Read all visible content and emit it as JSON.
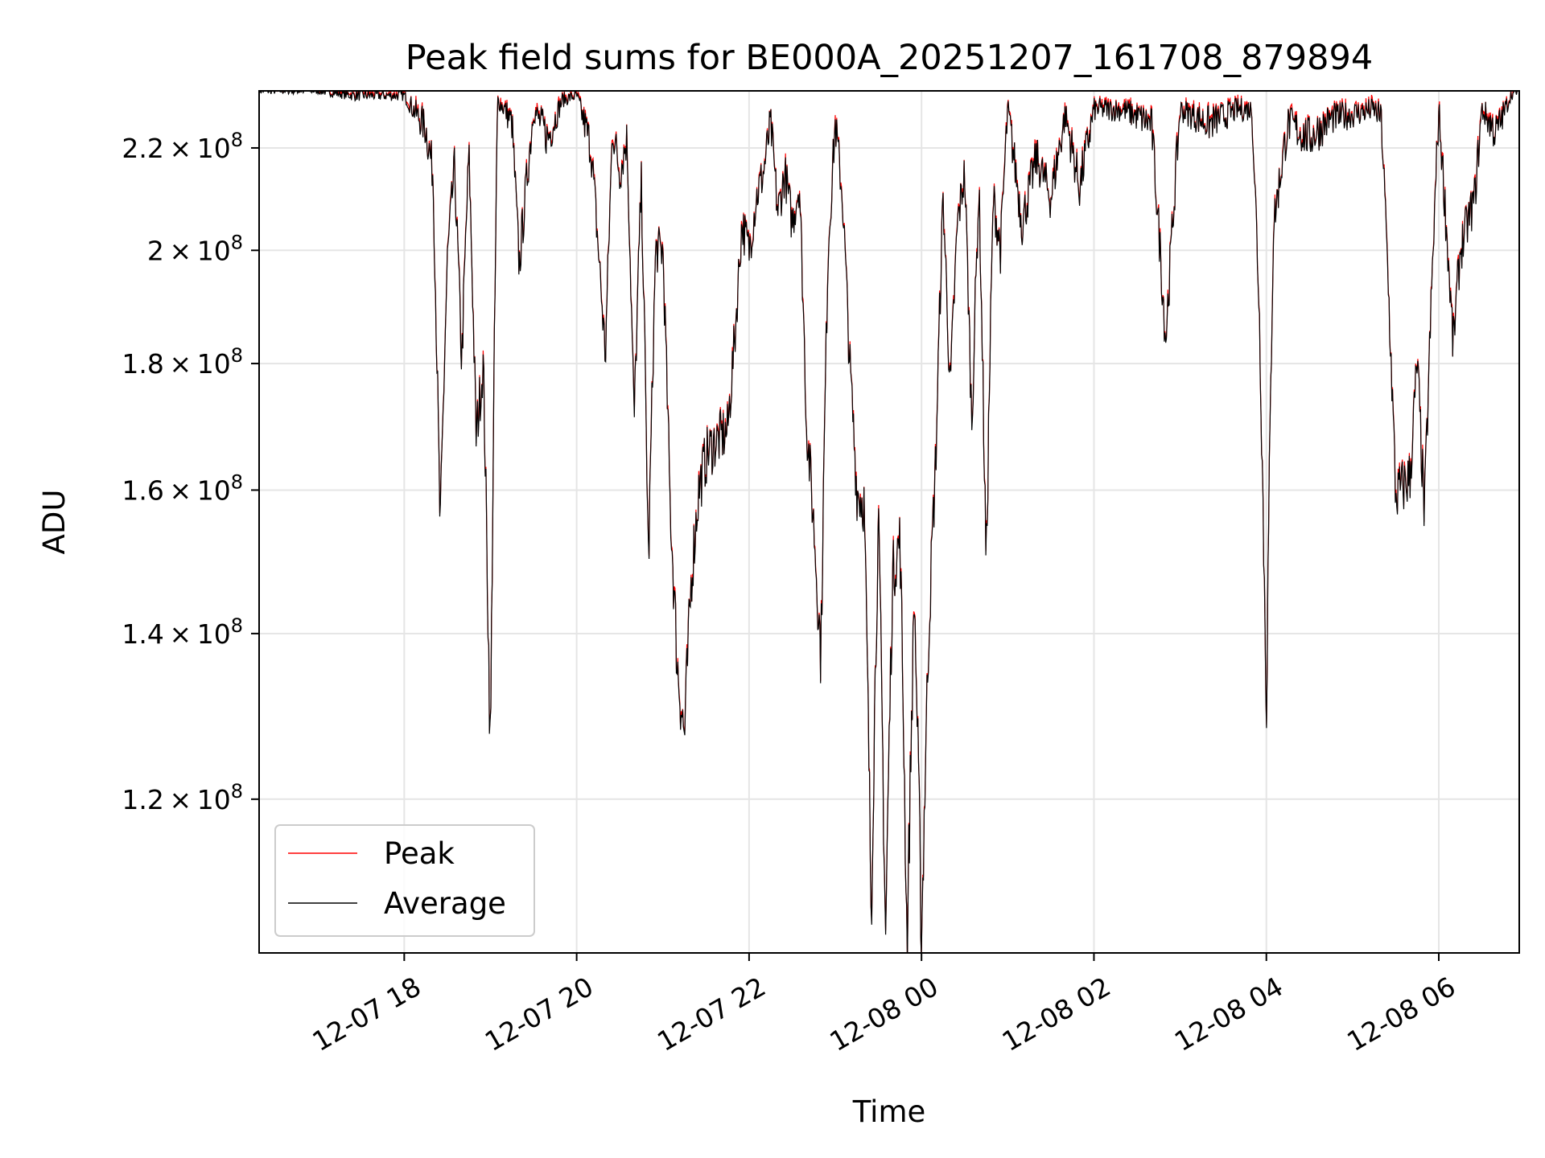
{
  "chart_data": {
    "type": "line",
    "title": "Peak field sums for BE000A_20251207_161708_879894",
    "xlabel": "Time",
    "ylabel": "ADU",
    "y_scale": "log",
    "x_range": [
      "2025-12-07 16:19",
      "2025-12-08 06:56"
    ],
    "ylim": [
      104000000,
      232000000
    ],
    "grid": true,
    "legend_position": "lower left",
    "x_ticks": [
      {
        "value": "2025-12-07 18:00",
        "label": "12-07 18"
      },
      {
        "value": "2025-12-07 20:00",
        "label": "12-07 20"
      },
      {
        "value": "2025-12-07 22:00",
        "label": "12-07 22"
      },
      {
        "value": "2025-12-08 00:00",
        "label": "12-08 00"
      },
      {
        "value": "2025-12-08 02:00",
        "label": "12-08 02"
      },
      {
        "value": "2025-12-08 04:00",
        "label": "12-08 04"
      },
      {
        "value": "2025-12-08 06:00",
        "label": "12-08 06"
      }
    ],
    "y_ticks": [
      {
        "value": 120000000,
        "mantissa": "1.2",
        "base": "10",
        "exponent": "8"
      },
      {
        "value": 140000000,
        "mantissa": "1.4",
        "base": "10",
        "exponent": "8"
      },
      {
        "value": 160000000,
        "mantissa": "1.6",
        "base": "10",
        "exponent": "8"
      },
      {
        "value": 180000000,
        "mantissa": "1.8",
        "base": "10",
        "exponent": "8"
      },
      {
        "value": 200000000,
        "mantissa": "2",
        "base": "10",
        "exponent": "8"
      },
      {
        "value": 220000000,
        "mantissa": "2.2",
        "base": "10",
        "exponent": "8"
      }
    ],
    "series": [
      {
        "name": "Peak",
        "color": "#ff0000"
      },
      {
        "name": "Average",
        "color": "#000000"
      }
    ],
    "x": [
      "2025-12-07 16:19",
      "2025-12-07 17:00",
      "2025-12-07 17:25",
      "2025-12-07 18:00",
      "2025-12-07 18:15",
      "2025-12-07 18:20",
      "2025-12-07 18:25",
      "2025-12-07 18:30",
      "2025-12-07 18:35",
      "2025-12-07 18:40",
      "2025-12-07 18:45",
      "2025-12-07 18:50",
      "2025-12-07 18:55",
      "2025-12-07 19:00",
      "2025-12-07 19:05",
      "2025-12-07 19:10",
      "2025-12-07 19:15",
      "2025-12-07 19:20",
      "2025-12-07 19:30",
      "2025-12-07 19:40",
      "2025-12-07 19:50",
      "2025-12-07 20:00",
      "2025-12-07 20:10",
      "2025-12-07 20:20",
      "2025-12-07 20:25",
      "2025-12-07 20:30",
      "2025-12-07 20:35",
      "2025-12-07 20:40",
      "2025-12-07 20:45",
      "2025-12-07 20:50",
      "2025-12-07 20:55",
      "2025-12-07 21:00",
      "2025-12-07 21:05",
      "2025-12-07 21:10",
      "2025-12-07 21:15",
      "2025-12-07 21:20",
      "2025-12-07 21:25",
      "2025-12-07 21:30",
      "2025-12-07 21:35",
      "2025-12-07 21:40",
      "2025-12-07 21:45",
      "2025-12-07 21:50",
      "2025-12-07 21:55",
      "2025-12-07 22:00",
      "2025-12-07 22:05",
      "2025-12-07 22:10",
      "2025-12-07 22:15",
      "2025-12-07 22:20",
      "2025-12-07 22:25",
      "2025-12-07 22:30",
      "2025-12-07 22:35",
      "2025-12-07 22:40",
      "2025-12-07 22:45",
      "2025-12-07 22:50",
      "2025-12-07 22:55",
      "2025-12-07 23:00",
      "2025-12-07 23:05",
      "2025-12-07 23:10",
      "2025-12-07 23:15",
      "2025-12-07 23:20",
      "2025-12-07 23:25",
      "2025-12-07 23:30",
      "2025-12-07 23:35",
      "2025-12-07 23:40",
      "2025-12-07 23:45",
      "2025-12-07 23:50",
      "2025-12-07 23:55",
      "2025-12-08 00:00",
      "2025-12-08 00:05",
      "2025-12-08 00:10",
      "2025-12-08 00:15",
      "2025-12-08 00:20",
      "2025-12-08 00:25",
      "2025-12-08 00:30",
      "2025-12-08 00:35",
      "2025-12-08 00:40",
      "2025-12-08 00:45",
      "2025-12-08 00:50",
      "2025-12-08 00:55",
      "2025-12-08 01:00",
      "2025-12-08 01:10",
      "2025-12-08 01:20",
      "2025-12-08 01:30",
      "2025-12-08 01:40",
      "2025-12-08 01:50",
      "2025-12-08 02:00",
      "2025-12-08 02:20",
      "2025-12-08 02:40",
      "2025-12-08 02:50",
      "2025-12-08 03:00",
      "2025-12-08 03:20",
      "2025-12-08 03:40",
      "2025-12-08 03:50",
      "2025-12-08 03:55",
      "2025-12-08 04:00",
      "2025-12-08 04:05",
      "2025-12-08 04:15",
      "2025-12-08 04:30",
      "2025-12-08 04:45",
      "2025-12-08 05:00",
      "2025-12-08 05:15",
      "2025-12-08 05:20",
      "2025-12-08 05:30",
      "2025-12-08 05:40",
      "2025-12-08 05:45",
      "2025-12-08 05:50",
      "2025-12-08 06:00",
      "2025-12-08 06:10",
      "2025-12-08 06:15",
      "2025-12-08 06:25",
      "2025-12-08 06:30",
      "2025-12-08 06:40",
      "2025-12-08 06:50",
      "2025-12-08 06:56"
    ],
    "y": [
      232000000,
      232000000,
      231000000,
      231000000,
      224000000,
      215000000,
      153000000,
      198000000,
      216000000,
      180000000,
      219000000,
      168000000,
      180000000,
      124000000,
      230000000,
      228000000,
      225000000,
      197000000,
      228000000,
      222000000,
      230000000,
      231000000,
      220000000,
      181000000,
      224000000,
      215000000,
      222000000,
      170000000,
      213000000,
      149000000,
      200000000,
      200000000,
      158000000,
      136000000,
      127000000,
      148000000,
      160000000,
      165000000,
      167000000,
      168000000,
      169000000,
      184000000,
      205000000,
      200000000,
      210000000,
      215000000,
      225000000,
      207000000,
      215000000,
      205000000,
      213000000,
      170000000,
      155000000,
      137000000,
      200000000,
      225000000,
      210000000,
      180000000,
      160000000,
      158000000,
      108000000,
      155000000,
      105000000,
      148000000,
      153000000,
      104000000,
      145000000,
      105000000,
      140000000,
      165000000,
      210000000,
      175000000,
      205000000,
      215000000,
      170000000,
      212000000,
      148000000,
      210000000,
      200000000,
      228000000,
      205000000,
      218000000,
      210000000,
      227000000,
      212000000,
      228000000,
      228000000,
      225000000,
      184000000,
      228000000,
      225000000,
      228000000,
      228000000,
      190000000,
      130000000,
      205000000,
      225000000,
      222000000,
      226000000,
      227000000,
      228000000,
      226000000,
      159000000,
      162000000,
      180000000,
      156000000,
      228000000,
      183000000,
      200000000,
      210000000,
      228000000,
      223000000,
      231000000,
      232000000
    ]
  },
  "legend": [
    {
      "label": "Peak",
      "color": "#ff0000"
    },
    {
      "label": "Average",
      "color": "#000000"
    }
  ]
}
